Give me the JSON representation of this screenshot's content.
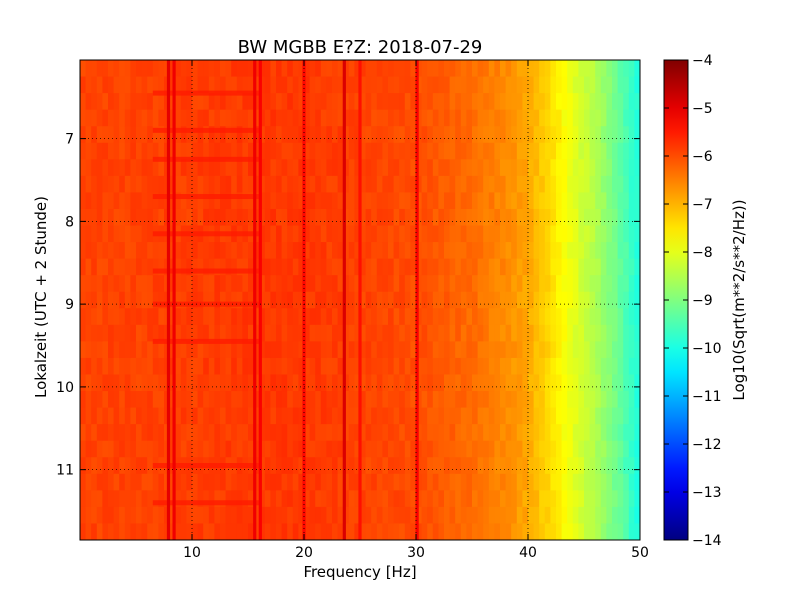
{
  "chart_data": {
    "type": "heatmap",
    "title": "BW MGBB E?Z: 2018-07-29",
    "xlabel": "Frequency [Hz]",
    "ylabel": "Lokalzeit (UTC + 2 Stunde)",
    "xlim": [
      0,
      50
    ],
    "ylim": [
      11.85,
      6.05
    ],
    "y_inverted": true,
    "x_ticks": [
      10,
      20,
      30,
      40,
      50
    ],
    "x_tick_labels": [
      "10",
      "20",
      "30",
      "40",
      "50"
    ],
    "y_ticks": [
      7,
      8,
      9,
      10,
      11
    ],
    "y_tick_labels": [
      "7",
      "8",
      "9",
      "10",
      "11"
    ],
    "grid": true,
    "colormap": "jet",
    "colorbar": {
      "label": "Log10(Sqrt(m**2/s**2/Hz))",
      "range": [
        -14,
        -4
      ],
      "ticks": [
        -4,
        -5,
        -6,
        -7,
        -8,
        -9,
        -10,
        -11,
        -12,
        -13,
        -14
      ],
      "tick_labels": [
        "−4",
        "−5",
        "−6",
        "−7",
        "−8",
        "−9",
        "−10",
        "−11",
        "−12",
        "−13",
        "−14"
      ]
    },
    "spectrum_profile": [
      {
        "f": 0,
        "level": -5.9
      },
      {
        "f": 5,
        "level": -5.9
      },
      {
        "f": 10,
        "level": -5.85
      },
      {
        "f": 15,
        "level": -5.8
      },
      {
        "f": 20,
        "level": -5.8
      },
      {
        "f": 25,
        "level": -5.9
      },
      {
        "f": 30,
        "level": -6.0
      },
      {
        "f": 35,
        "level": -6.3
      },
      {
        "f": 38,
        "level": -6.6
      },
      {
        "f": 40,
        "level": -6.9
      },
      {
        "f": 42,
        "level": -7.4
      },
      {
        "f": 44,
        "level": -8.0
      },
      {
        "f": 46,
        "level": -8.5
      },
      {
        "f": 48,
        "level": -9.2
      },
      {
        "f": 50,
        "level": -10.0
      }
    ],
    "vertical_features": [
      {
        "f": 7.9,
        "level": -5.0
      },
      {
        "f": 8.4,
        "level": -5.1
      },
      {
        "f": 15.6,
        "level": -5.1
      },
      {
        "f": 16.1,
        "level": -5.2
      },
      {
        "f": 20.0,
        "level": -5.3
      },
      {
        "f": 23.6,
        "level": -4.9
      },
      {
        "f": 25.0,
        "level": -5.4
      },
      {
        "f": 30.1,
        "level": -5.2
      }
    ],
    "horizontal_features": [
      {
        "t": 6.45,
        "level": -5.5
      },
      {
        "t": 6.9,
        "level": -5.5
      },
      {
        "t": 7.25,
        "level": -5.5
      },
      {
        "t": 7.7,
        "level": -5.5
      },
      {
        "t": 8.15,
        "level": -5.5
      },
      {
        "t": 8.6,
        "level": -5.5
      },
      {
        "t": 9.0,
        "level": -5.5
      },
      {
        "t": 9.45,
        "level": -5.5
      },
      {
        "t": 10.95,
        "level": -5.5
      },
      {
        "t": 11.4,
        "level": -5.5
      }
    ]
  }
}
